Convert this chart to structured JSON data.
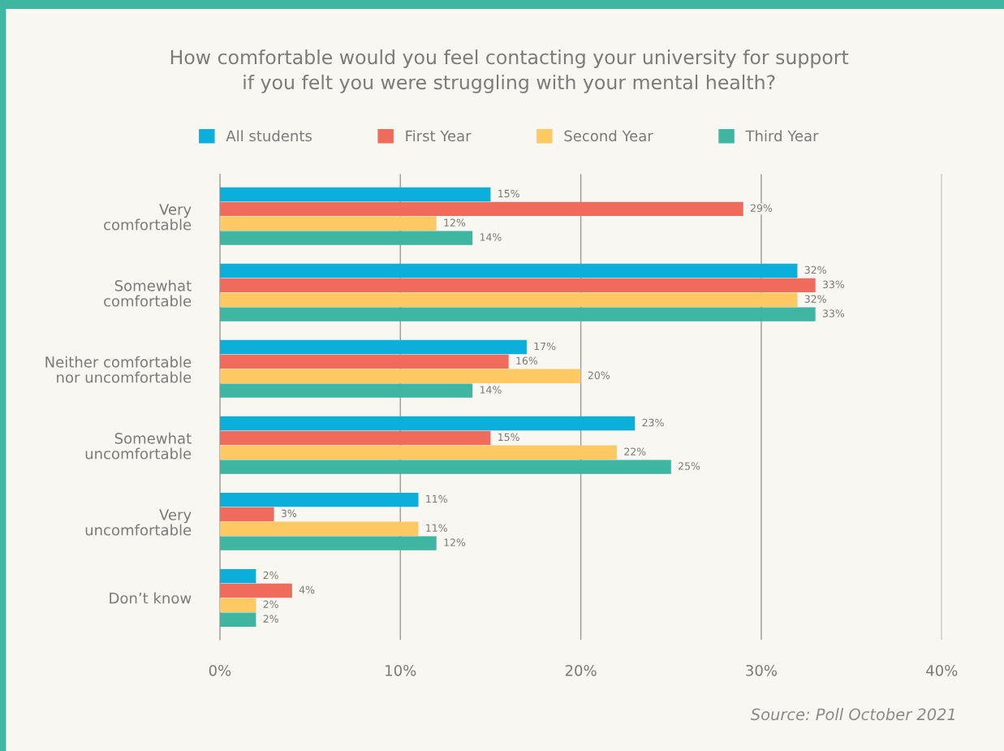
{
  "chart_data": {
    "type": "bar",
    "orientation": "horizontal",
    "title": "How comfortable would you feel contacting your university for support\nif you felt you were struggling with your mental health?",
    "categories": [
      "Very\ncomfortable",
      "Somewhat\ncomfortable",
      "Neither comfortable\nnor uncomfortable",
      "Somewhat\nuncomfortable",
      "Very\nuncomfortable",
      "Don’t know"
    ],
    "series": [
      {
        "name": "All students",
        "color": "#0bb0da",
        "values": [
          15,
          32,
          17,
          23,
          11,
          2
        ],
        "value_labels": [
          "15%",
          "32%",
          "17%",
          "23%",
          "11%",
          "2%"
        ]
      },
      {
        "name": "First Year",
        "color": "#ef6b5b",
        "values": [
          29,
          33,
          16,
          15,
          3,
          4
        ],
        "value_labels": [
          "29%",
          "33%",
          "16%",
          "15%",
          "3%",
          "4%"
        ]
      },
      {
        "name": "Second Year",
        "color": "#fec863",
        "values": [
          12,
          32,
          20,
          22,
          11,
          2
        ],
        "value_labels": [
          "12%",
          "32%",
          "20%",
          "22%",
          "11%",
          "2%"
        ]
      },
      {
        "name": "Third Year",
        "color": "#3fb6a1",
        "values": [
          14,
          33,
          14,
          25,
          12,
          2
        ],
        "value_labels": [
          "14%",
          "33%",
          "14%",
          "25%",
          "12%",
          "2%"
        ]
      }
    ],
    "xlim": [
      0,
      40
    ],
    "xticks": [
      {
        "value": 0,
        "label": "0%"
      },
      {
        "value": 10,
        "label": "10%"
      },
      {
        "value": 20,
        "label": "20%"
      },
      {
        "value": 30,
        "label": "30%"
      },
      {
        "value": 40,
        "label": "40%"
      }
    ],
    "grid": "x",
    "legend": "top",
    "annotations": [
      "Source: Poll October 2021"
    ]
  }
}
